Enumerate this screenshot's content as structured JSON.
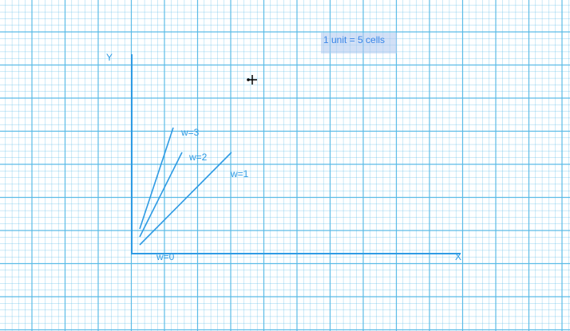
{
  "canvas": {
    "scale_label": "1 unit = 5 cells",
    "grid_color": "#54b9e6",
    "accent_color": "#2e9be4"
  },
  "axes": {
    "y_label": "Y",
    "x_label": "X"
  },
  "lines": [
    {
      "label": "w=3"
    },
    {
      "label": "w=2"
    },
    {
      "label": "w=1"
    },
    {
      "label": "w=0"
    }
  ],
  "cursor": {
    "icon": "crosshair-cursor-icon"
  }
}
